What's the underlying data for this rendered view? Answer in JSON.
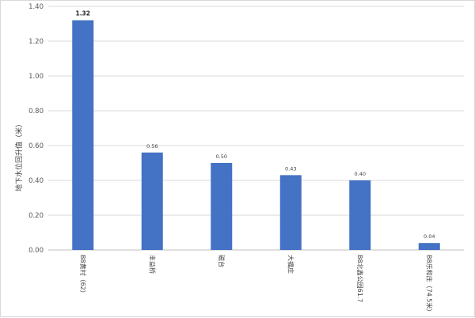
{
  "chart_data": {
    "type": "bar",
    "title": "",
    "xlabel": "",
    "ylabel": "地下水位回升值（米）",
    "ylim": [
      0,
      1.4
    ],
    "yticks": [
      "0.00",
      "0.20",
      "0.40",
      "0.60",
      "0.80",
      "1.00",
      "1.20",
      "1.40"
    ],
    "grid": true,
    "legend": "none",
    "bar_color": "#4472c4",
    "categories": [
      "B8黄村（62）",
      "丰益桥",
      "磁台",
      "大福庄",
      "B8北鑫公园61.7",
      "B8乐和庄（74.5米）"
    ],
    "values": [
      1.32,
      0.56,
      0.5,
      0.43,
      0.4,
      0.04
    ],
    "value_labels": [
      "1.32",
      "0.56",
      "0.50",
      "0.43",
      "0.40",
      "0.04"
    ]
  }
}
